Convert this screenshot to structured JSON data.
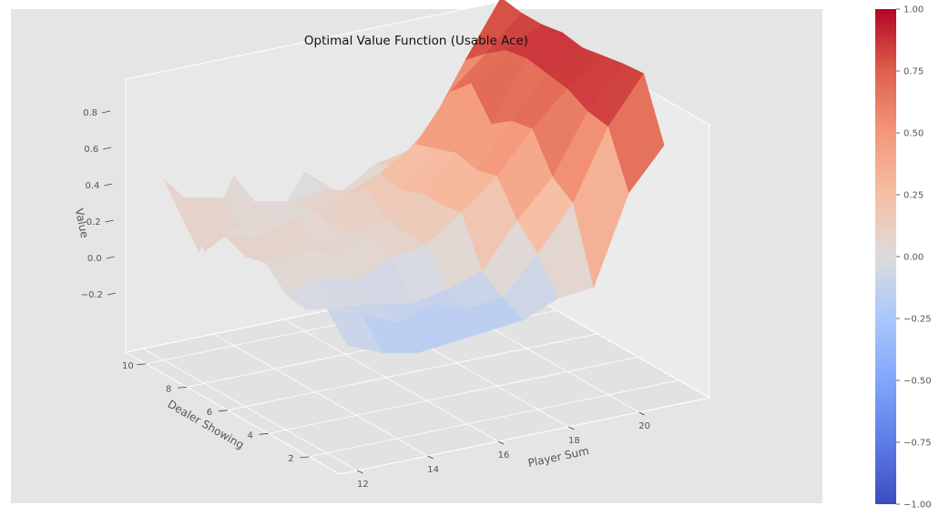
{
  "chart_data": {
    "type": "surface3d",
    "title": "Optimal Value Function (Usable Ace)",
    "xlabel": "Player Sum",
    "ylabel": "Dealer Showing",
    "zlabel": "Value",
    "x_ticks": [
      "12",
      "14",
      "16",
      "18",
      "20"
    ],
    "y_ticks": [
      "2",
      "4",
      "6",
      "8",
      "10"
    ],
    "z_ticks": [
      "−0.2",
      "0.0",
      "0.2",
      "0.4",
      "0.6",
      "0.8"
    ],
    "x": [
      12,
      13,
      14,
      15,
      16,
      17,
      18,
      19,
      20,
      21
    ],
    "y": [
      1,
      2,
      3,
      4,
      5,
      6,
      7,
      8,
      9,
      10
    ],
    "zlim": [
      -0.35,
      0.95
    ],
    "values": [
      [
        -0.12,
        -0.2,
        -0.24,
        -0.22,
        -0.2,
        -0.18,
        -0.1,
        -0.08,
        0.4,
        0.62
      ],
      [
        0.02,
        -0.05,
        -0.14,
        -0.08,
        -0.14,
        -0.12,
        0.08,
        0.32,
        0.7,
        0.95
      ],
      [
        -0.05,
        -0.08,
        -0.1,
        -0.14,
        -0.1,
        -0.04,
        0.2,
        0.4,
        0.72,
        0.94
      ],
      [
        -0.03,
        0.02,
        -0.03,
        0.05,
        0.08,
        0.22,
        0.38,
        0.6,
        0.78,
        0.92
      ],
      [
        0.08,
        0.1,
        0.05,
        0.12,
        0.08,
        0.2,
        0.35,
        0.58,
        0.8,
        0.9
      ],
      [
        0.05,
        0.1,
        0.02,
        0.05,
        0.1,
        0.2,
        0.38,
        0.5,
        0.82,
        0.92
      ],
      [
        0.1,
        0.05,
        0.12,
        0.04,
        0.2,
        0.15,
        0.34,
        0.66,
        0.8,
        0.9
      ],
      [
        -0.05,
        0.05,
        -0.06,
        0.06,
        0.1,
        0.18,
        0.3,
        0.55,
        0.72,
        0.9
      ],
      [
        0.18,
        0.14,
        0.08,
        0.04,
        0.06,
        0.02,
        0.12,
        0.3,
        0.62,
        0.92
      ],
      [
        0.22,
        -0.22,
        0.16,
        -0.2,
        0.1,
        -0.06,
        0.06,
        0.1,
        0.16,
        0.38
      ]
    ],
    "colorbar": {
      "ticks": [
        "1.00",
        "0.75",
        "0.50",
        "0.25",
        "0.00",
        "−0.25",
        "−0.50",
        "−0.75",
        "−1.00"
      ],
      "range": [
        -1,
        1
      ],
      "colormap": "coolwarm"
    },
    "grid": true,
    "background": "#e5e5e5"
  }
}
